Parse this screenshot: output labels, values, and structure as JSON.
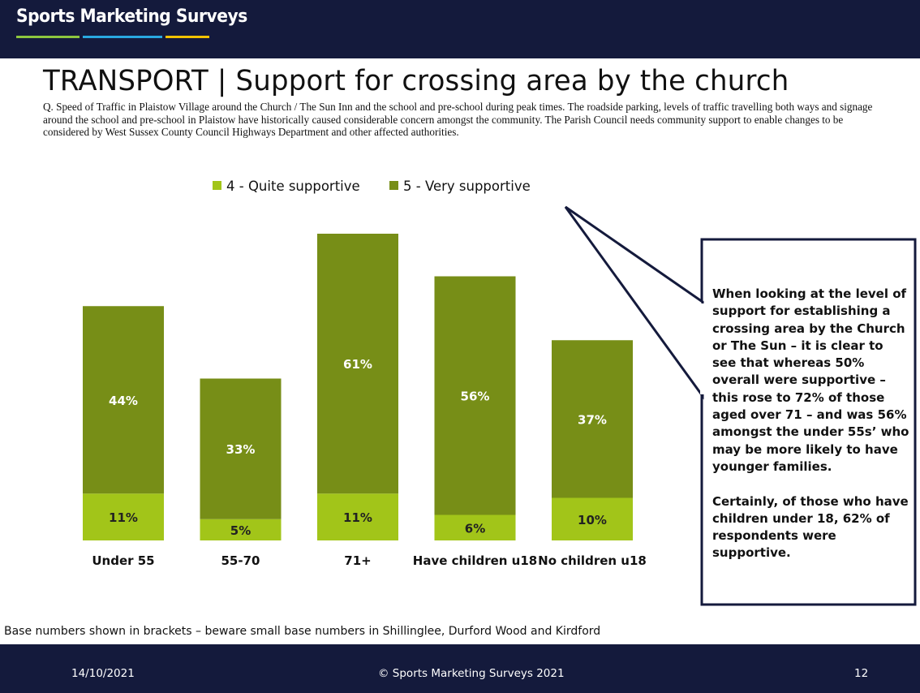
{
  "header": {
    "logo_text": "Sports Marketing Surveys",
    "logo_line_colors": [
      "#8dc63f",
      "#29a8e0",
      "#f2c200"
    ]
  },
  "title": "TRANSPORT  |  Support for crossing area by the church",
  "question": "Q. Speed of Traffic in Plaistow Village around the Church / The Sun Inn and the school and pre-school during peak times. The roadside parking, levels of traffic travelling both ways and signage around the school and pre-school in Plaistow have historically caused considerable concern amongst the community. The Parish Council needs community support to enable changes to be considered by West Sussex County Council Highways Department and other affected authorities.",
  "chart_data": {
    "type": "bar",
    "stacked": true,
    "categories": [
      "Under 55",
      "55-70",
      "71+",
      "Have children u18",
      "No children u18"
    ],
    "series": [
      {
        "name": "4 - Quite supportive",
        "color": "#a2c519",
        "values": [
          11,
          5,
          11,
          6,
          10
        ]
      },
      {
        "name": "5 - Very supportive",
        "color": "#778e17",
        "values": [
          44,
          33,
          61,
          56,
          37
        ]
      }
    ],
    "ylim": [
      0,
      72
    ],
    "grid": false,
    "legend_position": "top"
  },
  "callout": {
    "text": "When looking at the level of support for establishing a crossing area by the Church or The Sun – it is clear to see that whereas 50% overall were supportive – this rose to 72% of those aged over 71 – and was 56% amongst the under 55s’ who may be more likely to have younger families.\n\nCertainly, of those who have children under 18, 62% of respondents were supportive."
  },
  "base_note": "Base numbers shown in brackets – beware small base numbers in Shillinglee, Durford Wood and Kirdford",
  "footer": {
    "date": "14/10/2021",
    "copyright": "© Sports Marketing Surveys 2021",
    "page": "12"
  }
}
